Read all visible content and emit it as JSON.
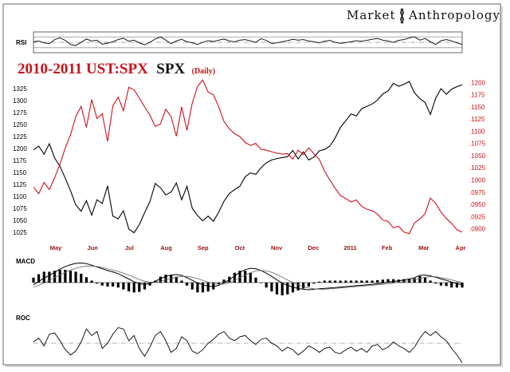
{
  "brand": {
    "left": "Market",
    "right": "Anthropology"
  },
  "title": {
    "red": "2010-2011 UST:SPX",
    "black": "SPX",
    "sub": "(Daily)"
  },
  "colors": {
    "spx": "#000000",
    "ust": "#d0101a",
    "accent": "#c8141a"
  },
  "chart_data": [
    {
      "type": "line",
      "name": "main",
      "title": "2010-2011 UST:SPX SPX (Daily)",
      "x_tick_labels": [
        "May",
        "Jun",
        "Jul",
        "Aug",
        "Sep",
        "Oct",
        "Nov",
        "Dec",
        "2011",
        "Feb",
        "Mar",
        "Apr"
      ],
      "left_axis": {
        "label": "SPX",
        "ylim": [
          1010,
          1350
        ],
        "ticks": [
          "1325",
          "1300",
          "1275",
          "1250",
          "1225",
          "1200",
          "1175",
          "1150",
          "1125",
          "1100",
          "1075",
          "1050",
          "1025"
        ]
      },
      "right_axis": {
        "label": "UST:SPX",
        "ylim": [
          0.0878,
          0.1212
        ],
        "ticks": [
          ".1200",
          ".1175",
          ".1150",
          ".1125",
          ".1100",
          ".1075",
          ".1050",
          ".1025",
          ".1000",
          ".0975",
          ".0950",
          ".0925",
          ".0900"
        ]
      },
      "series": [
        {
          "name": "SPX",
          "axis": "left",
          "values": [
            1197,
            1205,
            1188,
            1210,
            1180,
            1163,
            1138,
            1112,
            1082,
            1069,
            1091,
            1061,
            1093,
            1085,
            1122,
            1059,
            1053,
            1070,
            1032,
            1024,
            1041,
            1066,
            1089,
            1127,
            1118,
            1103,
            1109,
            1128,
            1093,
            1121,
            1075,
            1060,
            1049,
            1059,
            1048,
            1067,
            1090,
            1106,
            1114,
            1121,
            1141,
            1149,
            1146,
            1160,
            1170,
            1176,
            1179,
            1181,
            1183,
            1196,
            1178,
            1193,
            1176,
            1182,
            1195,
            1198,
            1205,
            1222,
            1244,
            1258,
            1272,
            1268,
            1283,
            1288,
            1293,
            1301,
            1314,
            1320,
            1336,
            1330,
            1334,
            1340,
            1316,
            1304,
            1296,
            1271,
            1305,
            1325,
            1313,
            1324,
            1329,
            1333
          ]
        },
        {
          "name": "UST:SPX",
          "axis": "right",
          "values": [
            0.0985,
            0.0972,
            0.0995,
            0.098,
            0.1005,
            0.1032,
            0.1066,
            0.1093,
            0.113,
            0.1151,
            0.1108,
            0.1165,
            0.1126,
            0.1136,
            0.1079,
            0.1152,
            0.117,
            0.1142,
            0.119,
            0.1185,
            0.1168,
            0.115,
            0.1133,
            0.111,
            0.1115,
            0.1145,
            0.113,
            0.109,
            0.115,
            0.1102,
            0.1158,
            0.1192,
            0.1205,
            0.118,
            0.1175,
            0.115,
            0.112,
            0.1105,
            0.1095,
            0.1089,
            0.1077,
            0.1071,
            0.1075,
            0.1063,
            0.1061,
            0.1058,
            0.1055,
            0.1053,
            0.1054,
            0.1043,
            0.1061,
            0.1052,
            0.1066,
            0.1054,
            0.1042,
            0.1018,
            0.1,
            0.0983,
            0.0968,
            0.0962,
            0.0955,
            0.0959,
            0.0946,
            0.094,
            0.0937,
            0.093,
            0.0918,
            0.0915,
            0.0902,
            0.0905,
            0.0893,
            0.089,
            0.0912,
            0.092,
            0.0931,
            0.0963,
            0.0952,
            0.0934,
            0.0921,
            0.0911,
            0.0898,
            0.0893
          ]
        }
      ]
    },
    {
      "type": "line",
      "name": "RSI",
      "title": "RSI",
      "ylim": [
        15,
        85
      ],
      "reference_lines": [
        70,
        50,
        30
      ],
      "series": [
        {
          "name": "RSI",
          "values": [
            52,
            55,
            48,
            45,
            60,
            66,
            57,
            42,
            38,
            50,
            62,
            55,
            58,
            43,
            47,
            52,
            60,
            65,
            54,
            58,
            48,
            41,
            50,
            62,
            70,
            58,
            45,
            55,
            61,
            52,
            48,
            42,
            50,
            56,
            53,
            58,
            62,
            55,
            52,
            58,
            60,
            55,
            50,
            63,
            57,
            45,
            48,
            52,
            56,
            61,
            58,
            60,
            55,
            52,
            48,
            54,
            57,
            50,
            46,
            49,
            52,
            56,
            54,
            57,
            61,
            64,
            58,
            55,
            50,
            57,
            60,
            66,
            70,
            58,
            64,
            52,
            42,
            56,
            60,
            55,
            48,
            42
          ]
        }
      ]
    },
    {
      "type": "line",
      "name": "MACD",
      "title": "MACD",
      "ylim": [
        -1.0,
        1.0
      ],
      "series": [
        {
          "name": "MACD",
          "values": [
            -0.1,
            0.05,
            0.2,
            0.32,
            0.46,
            0.6,
            0.72,
            0.8,
            0.86,
            0.88,
            0.85,
            0.78,
            0.7,
            0.62,
            0.54,
            0.48,
            0.4,
            0.28,
            0.16,
            0.04,
            -0.05,
            -0.08,
            -0.04,
            0.06,
            0.18,
            0.28,
            0.34,
            0.36,
            0.32,
            0.22,
            0.1,
            -0.02,
            -0.1,
            -0.16,
            -0.18,
            -0.12,
            0.0,
            0.12,
            0.3,
            0.46,
            0.58,
            0.64,
            0.62,
            0.54,
            0.42,
            0.28,
            0.12,
            -0.02,
            -0.12,
            -0.2,
            -0.26,
            -0.3,
            -0.32,
            -0.3,
            -0.28,
            -0.26,
            -0.24,
            -0.22,
            -0.2,
            -0.18,
            -0.16,
            -0.14,
            -0.12,
            -0.1,
            -0.08,
            -0.05,
            -0.02,
            0.02,
            0.05,
            0.08,
            0.12,
            0.16,
            0.22,
            0.32,
            0.34,
            0.3,
            0.24,
            0.16,
            0.1,
            0.02,
            -0.04,
            -0.1
          ]
        },
        {
          "name": "Signal",
          "values": [
            -0.2,
            -0.12,
            -0.02,
            0.1,
            0.22,
            0.34,
            0.46,
            0.56,
            0.64,
            0.7,
            0.74,
            0.74,
            0.72,
            0.68,
            0.62,
            0.56,
            0.5,
            0.42,
            0.34,
            0.24,
            0.14,
            0.06,
            0.02,
            0.02,
            0.06,
            0.12,
            0.18,
            0.24,
            0.28,
            0.28,
            0.24,
            0.18,
            0.1,
            0.02,
            -0.04,
            -0.08,
            -0.06,
            0.0,
            0.1,
            0.22,
            0.34,
            0.44,
            0.52,
            0.54,
            0.52,
            0.46,
            0.36,
            0.24,
            0.12,
            0.0,
            -0.1,
            -0.18,
            -0.24,
            -0.28,
            -0.3,
            -0.3,
            -0.28,
            -0.26,
            -0.24,
            -0.22,
            -0.2,
            -0.18,
            -0.16,
            -0.14,
            -0.12,
            -0.1,
            -0.08,
            -0.05,
            -0.02,
            0.02,
            0.05,
            0.09,
            0.13,
            0.19,
            0.24,
            0.26,
            0.26,
            0.22,
            0.17,
            0.12,
            0.06,
            0.0
          ]
        }
      ]
    },
    {
      "type": "line",
      "name": "ROC",
      "title": "ROC",
      "ylim": [
        -8,
        8
      ],
      "reference_lines": [
        0
      ],
      "series": [
        {
          "name": "ROC",
          "values": [
            0.5,
            2.0,
            -1.0,
            3.5,
            4.0,
            1.0,
            -2.5,
            -4.5,
            -3.0,
            0.5,
            5.5,
            3.0,
            4.5,
            -2.0,
            0.0,
            3.5,
            6.0,
            5.5,
            1.0,
            3.0,
            -2.0,
            -5.0,
            -1.5,
            3.0,
            4.5,
            1.0,
            -3.5,
            -2.0,
            2.5,
            1.0,
            -3.0,
            -4.0,
            -2.5,
            0.0,
            1.5,
            3.5,
            4.5,
            2.0,
            1.0,
            2.5,
            3.0,
            1.0,
            -0.5,
            1.5,
            2.0,
            0.0,
            -1.0,
            -3.0,
            -1.5,
            -2.5,
            -4.5,
            -3.0,
            -1.0,
            -2.0,
            -3.5,
            -2.0,
            -1.5,
            -3.5,
            -4.0,
            -2.5,
            -1.5,
            -3.0,
            -2.0,
            -3.5,
            -1.0,
            -0.5,
            -2.5,
            -1.5,
            0.5,
            -1.0,
            -2.0,
            -3.5,
            -1.5,
            2.0,
            4.5,
            3.0,
            4.5,
            2.5,
            1.0,
            -2.0,
            -4.5,
            -7.5
          ]
        }
      ]
    }
  ]
}
